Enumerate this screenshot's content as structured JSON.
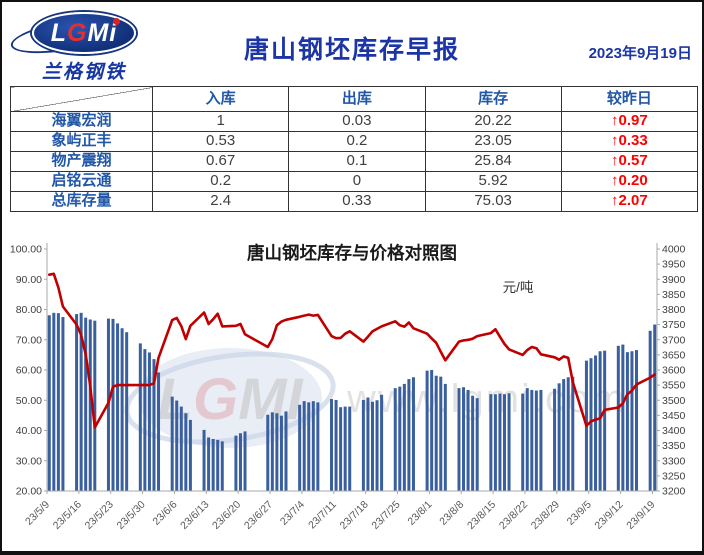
{
  "header": {
    "logo": {
      "part1": "L",
      "part2": "G",
      "part3": "Mi",
      "caption": "兰格钢铁"
    },
    "title": "唐山钢坯库存早报",
    "date": "2023年9月19日"
  },
  "table": {
    "columns": [
      "入库",
      "出库",
      "库存",
      "较昨日"
    ],
    "rows": [
      {
        "name": "海翼宏润",
        "inbound": "1",
        "outbound": "0.03",
        "stock": "20.22",
        "change": "↑0.97"
      },
      {
        "name": "象屿正丰",
        "inbound": "0.53",
        "outbound": "0.2",
        "stock": "23.05",
        "change": "↑0.33"
      },
      {
        "name": "物产震翔",
        "inbound": "0.67",
        "outbound": "0.1",
        "stock": "25.84",
        "change": "↑0.57"
      },
      {
        "name": "启铭云通",
        "inbound": "0.2",
        "outbound": "0",
        "stock": "5.92",
        "change": "↑0.20"
      },
      {
        "name": "总库存量",
        "inbound": "2.4",
        "outbound": "0.33",
        "stock": "75.03",
        "change": "↑2.07"
      }
    ]
  },
  "watermark": {
    "brand": "LGMI",
    "site": "www.lgmi.com"
  },
  "chart_data": {
    "type": "bar",
    "subtype": "bar+line dual axis",
    "title": "唐山钢坯库存与价格对照图",
    "unit_label": "元/吨",
    "bar_series_name": "库存",
    "line_series_name": "价格",
    "colors": {
      "bar": "#3a5f9e",
      "line": "#c00000",
      "axis": "#a8a8a8",
      "xlabel": "#595959",
      "ylabel": "#3f3f3f"
    },
    "left_axis": {
      "min": 20,
      "max": 100,
      "step": 10,
      "decimals": 2
    },
    "right_axis": {
      "min": 3200,
      "max": 4000,
      "step": 50,
      "decimals": 0
    },
    "x_tick_labels": [
      "23/5/9",
      "23/5/16",
      "23/5/23",
      "23/5/30",
      "23/6/6",
      "23/6/13",
      "23/6/20",
      "23/6/27",
      "23/7/4",
      "23/7/11",
      "23/7/18",
      "23/7/25",
      "23/8/1",
      "23/8/8",
      "23/8/15",
      "23/8/22",
      "23/8/29",
      "23/9/5",
      "23/9/12",
      "23/9/19"
    ],
    "days": [
      [
        "23/5/9",
        78.1,
        3915
      ],
      [
        "23/5/10",
        78.9,
        3918
      ],
      [
        "23/5/11",
        78.8,
        3872
      ],
      [
        "23/5/12",
        77.5,
        3810
      ],
      [
        "23/5/15",
        78.5,
        3750
      ],
      [
        "23/5/16",
        78.9,
        3716
      ],
      [
        "23/5/17",
        77.3,
        3652
      ],
      [
        "23/5/18",
        76.7,
        3548
      ],
      [
        "23/5/19",
        76.3,
        3410
      ],
      [
        "23/5/22",
        77.0,
        3492
      ],
      [
        "23/5/23",
        76.9,
        3545
      ],
      [
        "23/5/24",
        75.4,
        3550
      ],
      [
        "23/5/25",
        73.8,
        3550
      ],
      [
        "23/5/26",
        72.5,
        3550
      ],
      [
        "23/5/29",
        68.8,
        3550
      ],
      [
        "23/5/30",
        66.9,
        3550
      ],
      [
        "23/5/31",
        65.8,
        3550
      ],
      [
        "23/6/1",
        63.6,
        3556
      ],
      [
        "23/6/2",
        59.2,
        3640
      ],
      [
        "23/6/5",
        51.2,
        3765
      ],
      [
        "23/6/6",
        49.9,
        3772
      ],
      [
        "23/6/7",
        47.9,
        3745
      ],
      [
        "23/6/8",
        45.7,
        3702
      ],
      [
        "23/6/9",
        43.5,
        3746
      ],
      [
        "23/6/12",
        40.2,
        3790
      ],
      [
        "23/6/13",
        37.7,
        3752
      ],
      [
        "23/6/14",
        37.2,
        3768
      ],
      [
        "23/6/15",
        36.9,
        3786
      ],
      [
        "23/6/16",
        36.4,
        3744
      ],
      [
        "23/6/19",
        38.3,
        3746
      ],
      [
        "23/6/20",
        39.1,
        3752
      ],
      [
        "23/6/21",
        39.7,
        3718
      ],
      [
        "23/6/26",
        45.2,
        3676
      ],
      [
        "23/6/27",
        46.0,
        3702
      ],
      [
        "23/6/28",
        45.7,
        3748
      ],
      [
        "23/6/29",
        44.9,
        3760
      ],
      [
        "23/6/30",
        46.3,
        3766
      ],
      [
        "23/7/3",
        48.5,
        3776
      ],
      [
        "23/7/4",
        49.7,
        3780
      ],
      [
        "23/7/5",
        49.3,
        3783
      ],
      [
        "23/7/6",
        49.7,
        3780
      ],
      [
        "23/7/7",
        49.3,
        3782
      ],
      [
        "23/7/10",
        50.4,
        3712
      ],
      [
        "23/7/11",
        50.1,
        3705
      ],
      [
        "23/7/12",
        47.7,
        3706
      ],
      [
        "23/7/13",
        47.9,
        3720
      ],
      [
        "23/7/14",
        47.9,
        3728
      ],
      [
        "23/7/17",
        50.1,
        3694
      ],
      [
        "23/7/18",
        50.9,
        3710
      ],
      [
        "23/7/19",
        49.5,
        3728
      ],
      [
        "23/7/20",
        50.0,
        3736
      ],
      [
        "23/7/21",
        51.8,
        3744
      ],
      [
        "23/7/24",
        54.0,
        3761
      ],
      [
        "23/7/25",
        54.5,
        3748
      ],
      [
        "23/7/26",
        55.4,
        3743
      ],
      [
        "23/7/27",
        57.0,
        3757
      ],
      [
        "23/7/28",
        57.6,
        3738
      ],
      [
        "23/7/31",
        59.8,
        3720
      ],
      [
        "23/8/1",
        60.0,
        3704
      ],
      [
        "23/8/2",
        58.1,
        3690
      ],
      [
        "23/8/3",
        57.8,
        3660
      ],
      [
        "23/8/4",
        55.4,
        3632
      ],
      [
        "23/8/7",
        54.0,
        3694
      ],
      [
        "23/8/8",
        54.3,
        3698
      ],
      [
        "23/8/9",
        53.4,
        3700
      ],
      [
        "23/8/10",
        51.5,
        3703
      ],
      [
        "23/8/11",
        50.7,
        3712
      ],
      [
        "23/8/14",
        52.0,
        3722
      ],
      [
        "23/8/15",
        52.0,
        3735
      ],
      [
        "23/8/16",
        52.2,
        3710
      ],
      [
        "23/8/17",
        52.0,
        3686
      ],
      [
        "23/8/18",
        52.3,
        3668
      ],
      [
        "23/8/21",
        52.2,
        3650
      ],
      [
        "23/8/22",
        54.0,
        3666
      ],
      [
        "23/8/23",
        53.4,
        3676
      ],
      [
        "23/8/24",
        53.2,
        3672
      ],
      [
        "23/8/25",
        53.4,
        3652
      ],
      [
        "23/8/28",
        53.8,
        3642
      ],
      [
        "23/8/29",
        55.6,
        3634
      ],
      [
        "23/8/30",
        57.0,
        3645
      ],
      [
        "23/8/31",
        57.6,
        3640
      ],
      [
        "23/9/1",
        57.8,
        3560
      ],
      [
        "23/9/4",
        63.1,
        3416
      ],
      [
        "23/9/5",
        63.9,
        3430
      ],
      [
        "23/9/6",
        64.8,
        3436
      ],
      [
        "23/9/7",
        66.2,
        3440
      ],
      [
        "23/9/8",
        66.4,
        3468
      ],
      [
        "23/9/11",
        68.0,
        3476
      ],
      [
        "23/9/12",
        68.4,
        3490
      ],
      [
        "23/9/13",
        65.9,
        3520
      ],
      [
        "23/9/14",
        66.2,
        3532
      ],
      [
        "23/9/15",
        66.6,
        3552
      ],
      [
        "23/9/18",
        72.96,
        3575
      ],
      [
        "23/9/19",
        75.03,
        3585
      ]
    ]
  }
}
